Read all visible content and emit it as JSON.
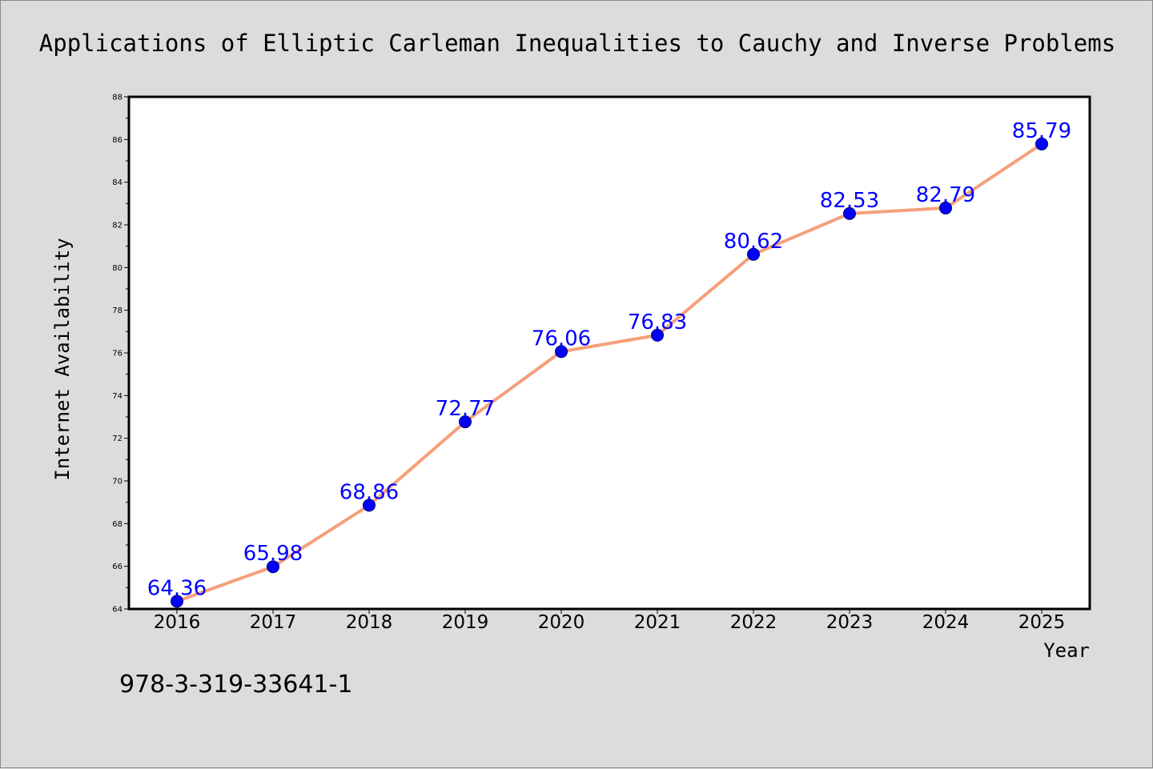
{
  "chart_data": {
    "type": "line",
    "title": "Applications of Elliptic Carleman Inequalities to Cauchy and Inverse Problems",
    "xlabel": "Year",
    "ylabel": "Internet Availability",
    "categories": [
      "2016",
      "2017",
      "2018",
      "2019",
      "2020",
      "2021",
      "2022",
      "2023",
      "2024",
      "2025"
    ],
    "series": [
      {
        "values": [
          64.36,
          65.98,
          68.86,
          72.77,
          76.06,
          76.83,
          80.62,
          82.53,
          82.79,
          85.79
        ],
        "labels": [
          "64.36",
          "65.98",
          "68.86",
          "72.77",
          "76.06",
          "76.83",
          "80.62",
          "82.53",
          "82.79",
          "85.79"
        ],
        "line_color": "#f4a07a",
        "marker_color": "#0000ff"
      }
    ],
    "ylim": [
      64,
      88
    ],
    "yticks": [
      "64",
      "66",
      "68",
      "70",
      "72",
      "74",
      "76",
      "78",
      "80",
      "82",
      "84",
      "86",
      "88"
    ],
    "grid": false,
    "legend": "none"
  },
  "footer": {
    "isbn": "978-3-319-33641-1"
  },
  "colors": {
    "background": "#dcdcdc",
    "plot_background": "#ffffff",
    "line": "#f4a07a",
    "marker": "#0000ff",
    "data_label": "#0000ff"
  }
}
